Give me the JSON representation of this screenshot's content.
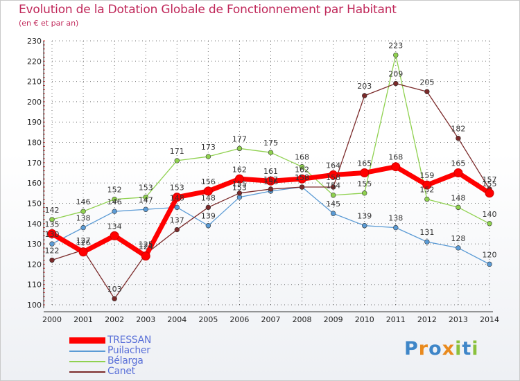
{
  "title": "Evolution de la Dotation Globale de Fonctionnement par Habitant",
  "subtitle": "(en € et par an)",
  "logo_text": "Proxiti",
  "chart_data": {
    "type": "line",
    "title": "Evolution de la Dotation Globale de Fonctionnement par Habitant",
    "subtitle": "(en € et par an)",
    "x": [
      2000,
      2001,
      2002,
      2003,
      2004,
      2005,
      2006,
      2007,
      2008,
      2009,
      2010,
      2011,
      2012,
      2013,
      2014
    ],
    "ylim": [
      100,
      230
    ],
    "yticks": [
      100,
      110,
      120,
      130,
      140,
      150,
      160,
      170,
      180,
      190,
      200,
      210,
      220,
      230
    ],
    "grid": true,
    "legend_position": "bottom-left",
    "series": [
      {
        "name": "TRESSAN",
        "color": "#ff0000",
        "values": [
          135,
          126,
          134,
          124,
          153,
          156,
          162,
          161,
          162,
          164,
          165,
          168,
          159,
          165,
          155
        ]
      },
      {
        "name": "Puilacher",
        "color": "#5b9bd5",
        "values": [
          130,
          138,
          146,
          147,
          148,
          139,
          153,
          156,
          158,
          145,
          139,
          138,
          131,
          128,
          120
        ]
      },
      {
        "name": "Bélarga",
        "color": "#8fd14f",
        "values": [
          142,
          146,
          152,
          153,
          171,
          173,
          177,
          175,
          168,
          154,
          155,
          223,
          152,
          148,
          140
        ]
      },
      {
        "name": "Canet",
        "color": "#7b2a2a",
        "values": [
          122,
          127,
          103,
          125,
          137,
          148,
          155,
          157,
          158,
          158,
          203,
          209,
          205,
          182,
          157
        ]
      }
    ]
  }
}
